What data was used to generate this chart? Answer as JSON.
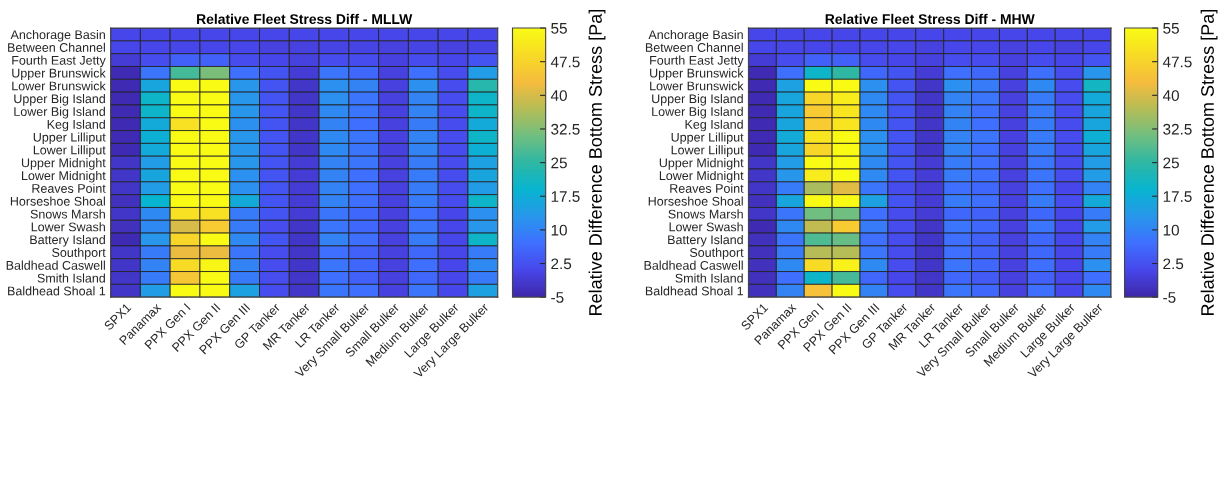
{
  "chart_data": [
    {
      "type": "heatmap",
      "title": "Relative Fleet Stress Diff - MLLW",
      "categories": [
        "SPX1",
        "Panamax",
        "PPX Gen I",
        "PPX Gen II",
        "PPX Gen III",
        "GP Tanker",
        "MR Tanker",
        "LR Tanker",
        "Very Small Bulker",
        "Small Bulker",
        "Medium Bulker",
        "Large Bulker",
        "Very Large Bulker"
      ],
      "y_categories": [
        "Anchorage Basin",
        "Between Channel",
        "Fourth East Jetty",
        "Upper Brunswick",
        "Lower Brunswick",
        "Upper Big Island",
        "Lower Big Island",
        "Keg Island",
        "Upper Lilliput",
        "Lower Lilliput",
        "Upper Midnight",
        "Lower Midnight",
        "Reaves Point",
        "Horseshoe Shoal",
        "Snows Marsh",
        "Lower Swash",
        "Battery Island",
        "Southport",
        "Baldhead Caswell",
        "Smith Island",
        "Baldhead Shoal 1"
      ],
      "cells": [
        [
          1,
          1,
          1,
          1,
          1,
          1,
          1,
          1,
          1,
          1,
          1,
          1,
          1
        ],
        [
          1,
          1,
          1,
          1,
          1,
          0,
          0,
          0.5,
          0.5,
          0,
          0.5,
          0,
          0.5
        ],
        [
          -1,
          2,
          5,
          5,
          2,
          1,
          0,
          2,
          2,
          0,
          2,
          1,
          3
        ],
        [
          -4,
          8,
          27,
          32,
          7,
          3,
          -1,
          8,
          6,
          0,
          7,
          2,
          14
        ],
        [
          -4,
          16,
          55,
          55,
          13,
          3,
          -2,
          12,
          10,
          0,
          12,
          2,
          24
        ],
        [
          -4,
          20,
          55,
          55,
          13,
          3,
          -2,
          12,
          8,
          0,
          10,
          2,
          20
        ],
        [
          -4,
          20,
          55,
          55,
          13,
          3,
          -2,
          11,
          8,
          0,
          10,
          2,
          20
        ],
        [
          -4,
          17,
          50,
          55,
          12,
          3,
          -2,
          10,
          7,
          0,
          9,
          2,
          17
        ],
        [
          -4,
          18,
          55,
          55,
          13,
          3,
          -2,
          11,
          8,
          0,
          10,
          2,
          20
        ],
        [
          -4,
          17,
          55,
          55,
          13,
          3,
          -2,
          11,
          8,
          0,
          10,
          2,
          18
        ],
        [
          -2,
          14,
          55,
          55,
          13,
          3,
          -1,
          10,
          8,
          0,
          9,
          2,
          15
        ],
        [
          -2,
          16,
          55,
          55,
          12,
          3,
          -1,
          10,
          7,
          0,
          9,
          2,
          16
        ],
        [
          -2,
          14,
          55,
          55,
          12,
          3,
          -1,
          10,
          7,
          0,
          9,
          2,
          14
        ],
        [
          -3,
          19,
          55,
          55,
          17,
          3,
          -1,
          10,
          7,
          0,
          9,
          2,
          20
        ],
        [
          -2,
          11,
          50,
          50,
          9,
          3,
          -1,
          8,
          6,
          0,
          7,
          1,
          12
        ],
        [
          -3,
          11,
          40,
          46,
          9,
          2,
          -2,
          8,
          6,
          0,
          8,
          1,
          13
        ],
        [
          -4,
          13,
          48,
          55,
          11,
          3,
          -2,
          10,
          7,
          0,
          9,
          1,
          20
        ],
        [
          -2,
          9,
          42,
          42,
          8,
          2,
          -2,
          7,
          5,
          0,
          6,
          1,
          9
        ],
        [
          -2,
          10,
          49,
          54,
          10,
          2,
          -2,
          8,
          6,
          0,
          7,
          1,
          11
        ],
        [
          -2,
          9,
          45,
          55,
          9,
          2,
          -2,
          7,
          5,
          0,
          6,
          1,
          9
        ],
        [
          -2,
          14,
          55,
          55,
          15,
          2,
          -2,
          8,
          7,
          0,
          8,
          1,
          15
        ]
      ],
      "clim": [
        -5,
        55
      ],
      "cticks": [
        -5,
        2.5,
        10,
        17.5,
        25,
        32.5,
        40,
        47.5,
        55
      ],
      "clabel": "Relative Difference Bottom Stress [Pa]"
    },
    {
      "type": "heatmap",
      "title": "Relative Fleet Stress Diff - MHW",
      "categories": [
        "SPX1",
        "Panamax",
        "PPX Gen I",
        "PPX Gen II",
        "PPX Gen III",
        "GP Tanker",
        "MR Tanker",
        "LR Tanker",
        "Very Small Bulker",
        "Small Bulker",
        "Medium Bulker",
        "Large Bulker",
        "Very Large Bulker"
      ],
      "y_categories": [
        "Anchorage Basin",
        "Between Channel",
        "Fourth East Jetty",
        "Upper Brunswick",
        "Lower Brunswick",
        "Upper Big Island",
        "Lower Big Island",
        "Keg Island",
        "Upper Lilliput",
        "Lower Lilliput",
        "Upper Midnight",
        "Lower Midnight",
        "Reaves Point",
        "Horseshoe Shoal",
        "Snows Marsh",
        "Lower Swash",
        "Battery Island",
        "Southport",
        "Baldhead Caswell",
        "Smith Island",
        "Baldhead Shoal 1"
      ],
      "cells": [
        [
          1,
          1,
          1,
          1,
          1,
          1,
          1,
          1,
          1,
          1,
          1,
          1,
          1
        ],
        [
          1,
          1,
          1,
          1,
          1,
          1,
          0,
          1,
          1,
          0,
          1,
          0,
          1
        ],
        [
          -1,
          2,
          5,
          5,
          2,
          1,
          0,
          2,
          2,
          0,
          2,
          1,
          3
        ],
        [
          -4,
          7,
          20,
          25,
          6,
          3,
          -1,
          7,
          6,
          0,
          7,
          2,
          13
        ],
        [
          -4,
          15,
          55,
          55,
          12,
          3,
          -2,
          12,
          9,
          0,
          11,
          2,
          21
        ],
        [
          -4,
          16,
          48,
          52,
          11,
          3,
          -2,
          10,
          8,
          0,
          9,
          2,
          17
        ],
        [
          -4,
          16,
          46,
          51,
          11,
          3,
          -2,
          10,
          7,
          0,
          9,
          2,
          16
        ],
        [
          -4,
          16,
          46,
          51,
          11,
          3,
          -2,
          10,
          7,
          0,
          9,
          2,
          16
        ],
        [
          -4,
          17,
          51,
          55,
          12,
          3,
          -2,
          10,
          8,
          0,
          9,
          2,
          18
        ],
        [
          -4,
          16,
          48,
          55,
          12,
          3,
          -2,
          10,
          7,
          0,
          9,
          2,
          16
        ],
        [
          -2,
          14,
          55,
          55,
          11,
          3,
          -1,
          9,
          7,
          0,
          8,
          2,
          14
        ],
        [
          -2,
          13,
          52,
          55,
          11,
          3,
          -1,
          9,
          7,
          0,
          8,
          2,
          14
        ],
        [
          -2,
          9,
          36,
          41,
          8,
          2,
          -1,
          7,
          6,
          0,
          7,
          1,
          10
        ],
        [
          -3,
          16,
          55,
          55,
          15,
          3,
          -1,
          9,
          7,
          0,
          9,
          2,
          17
        ],
        [
          -2,
          8,
          31,
          31,
          7,
          2,
          -1,
          6,
          5,
          0,
          6,
          1,
          9
        ],
        [
          -4,
          11,
          38,
          46,
          9,
          2,
          -2,
          8,
          6,
          0,
          8,
          1,
          14
        ],
        [
          -3,
          8,
          28,
          30,
          7,
          2,
          -2,
          7,
          5,
          0,
          6,
          1,
          10
        ],
        [
          -3,
          9,
          37,
          37,
          8,
          2,
          -2,
          7,
          5,
          0,
          6,
          1,
          9
        ],
        [
          -3,
          11,
          49,
          53,
          11,
          2,
          -2,
          8,
          6,
          0,
          7,
          1,
          12
        ],
        [
          -3,
          7,
          20,
          27,
          6,
          1,
          -2,
          6,
          4,
          0,
          5,
          1,
          7
        ],
        [
          -3,
          10,
          44,
          55,
          10,
          2,
          -2,
          8,
          6,
          0,
          7,
          1,
          11
        ]
      ],
      "clim": [
        -5,
        55
      ],
      "cticks": [
        -5,
        2.5,
        10,
        17.5,
        25,
        32.5,
        40,
        47.5,
        55
      ],
      "clabel": "Relative Difference Bottom Stress [Pa]"
    }
  ]
}
